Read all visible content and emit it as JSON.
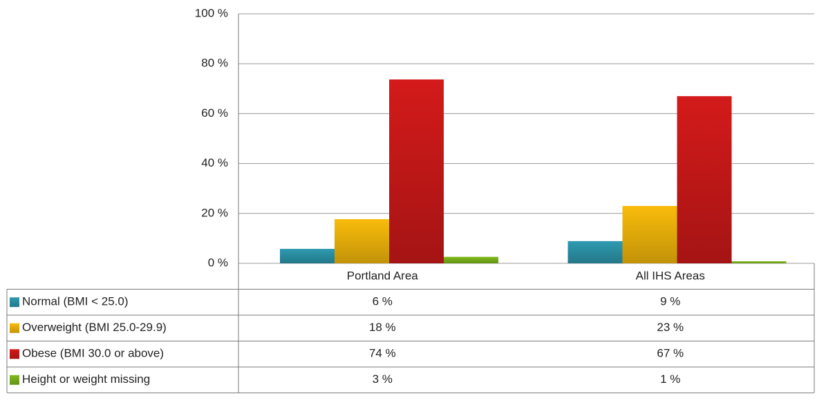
{
  "chart_data": {
    "type": "bar",
    "categories": [
      "Portland Area",
      "All IHS Areas"
    ],
    "series": [
      {
        "name": "Normal (BMI < 25.0)",
        "color": "#2e9ab0",
        "values": [
          5.8,
          8.9
        ],
        "value_labels": [
          "6 %",
          "9 %"
        ]
      },
      {
        "name": "Overweight (BMI 25.0-29.9)",
        "color": "#f9bc0b",
        "values": [
          17.7,
          23
        ],
        "value_labels": [
          "18 %",
          "23 %"
        ]
      },
      {
        "name": "Obese (BMI 30.0 or above)",
        "color": "#d41a1a",
        "values": [
          73.7,
          67
        ],
        "value_labels": [
          "74 %",
          "67 %"
        ]
      },
      {
        "name": "Height or weight missing",
        "color": "#80bb1c",
        "values": [
          2.6,
          0.8
        ],
        "value_labels": [
          "3 %",
          "1 %"
        ]
      }
    ],
    "ylim": [
      0,
      100
    ],
    "yticks": [
      {
        "value": 0,
        "label": "0 %"
      },
      {
        "value": 20,
        "label": "20 %"
      },
      {
        "value": 40,
        "label": "40 %"
      },
      {
        "value": 60,
        "label": "60 %"
      },
      {
        "value": 80,
        "label": "80 %"
      },
      {
        "value": 100,
        "label": "100 %"
      }
    ],
    "grid": true
  }
}
